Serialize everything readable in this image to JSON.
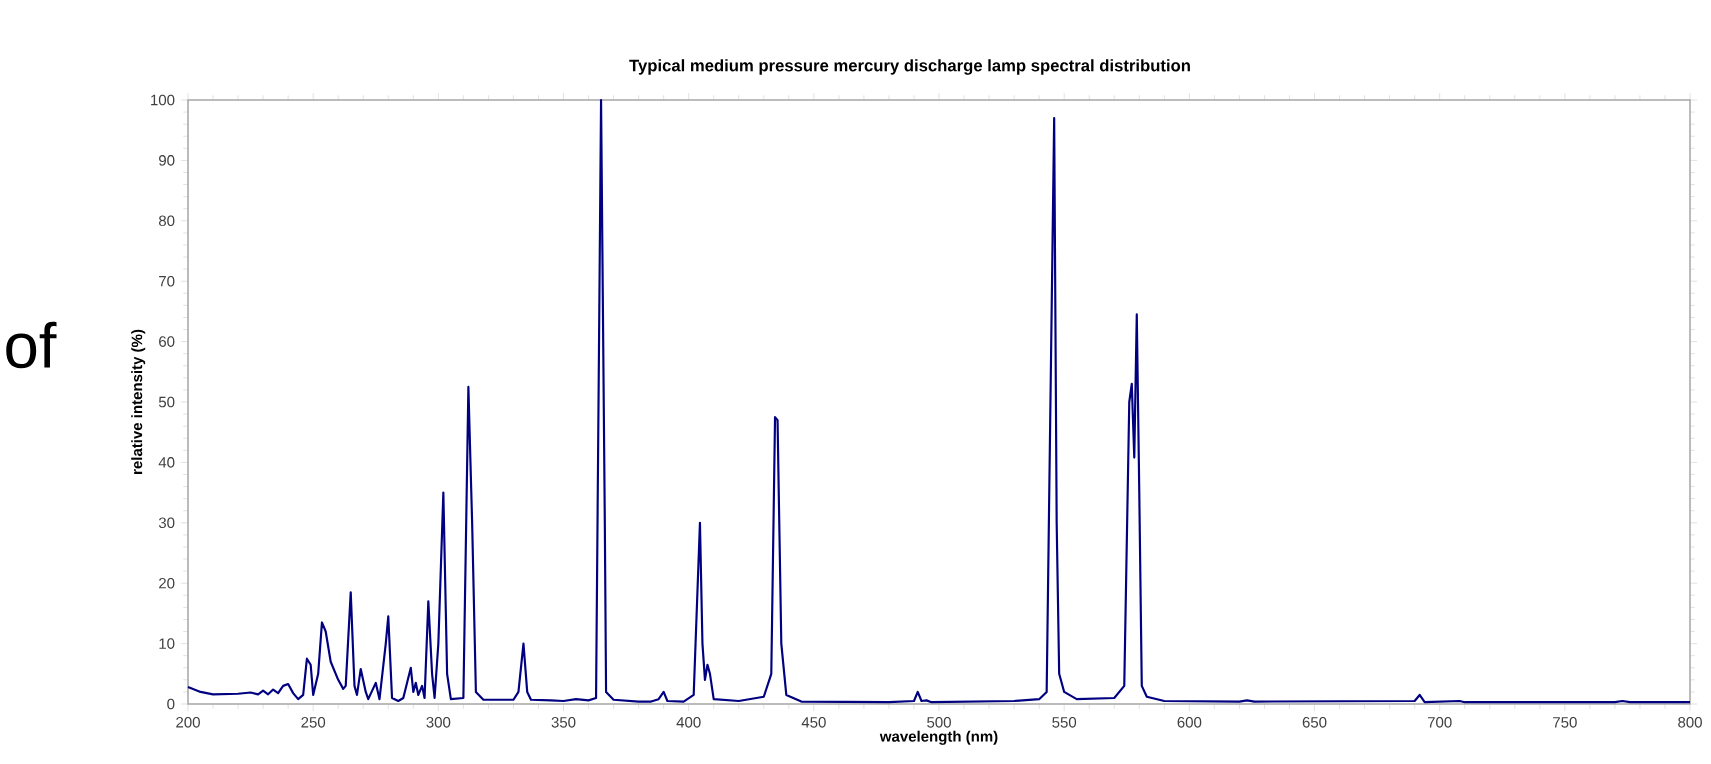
{
  "chart_data": {
    "type": "line",
    "title": "Typical medium pressure mercury discharge lamp spectral distribution",
    "xlabel": "wavelength (nm)",
    "ylabel": "relative intensity (%)",
    "annotations": [
      "of"
    ],
    "xlim": [
      200,
      800
    ],
    "ylim": [
      0,
      100
    ],
    "xticks": [
      200,
      250,
      300,
      350,
      400,
      450,
      500,
      550,
      600,
      650,
      700,
      750,
      800
    ],
    "yticks": [
      0,
      10,
      20,
      30,
      40,
      50,
      60,
      70,
      80,
      90,
      100
    ],
    "grid": false,
    "marker": "none",
    "line_style": "solid",
    "x": [
      200,
      205,
      210,
      220,
      225,
      228,
      230,
      232,
      234,
      236,
      238,
      240,
      242,
      244,
      246,
      247.5,
      249,
      250,
      252,
      253.5,
      255,
      257,
      260,
      262,
      263,
      265,
      266.5,
      267.5,
      269,
      271,
      272,
      275,
      276.5,
      279,
      280,
      281.5,
      284,
      286,
      289,
      290,
      291,
      292,
      293.5,
      294.5,
      296,
      297.5,
      298.5,
      300,
      302,
      303.5,
      305,
      310,
      312,
      313.5,
      315,
      318,
      330,
      332,
      334,
      335.5,
      337,
      345,
      350,
      355,
      360,
      363,
      365,
      366.5,
      367,
      370,
      380,
      385,
      388,
      390,
      391.5,
      398,
      402,
      404.5,
      405.5,
      406.5,
      407.5,
      408.5,
      410,
      420,
      430,
      433,
      434.5,
      435.5,
      437,
      439,
      445,
      480,
      490,
      491.5,
      493,
      495,
      497,
      530,
      540,
      543,
      546,
      547,
      548,
      550,
      555,
      570,
      574,
      576,
      577,
      578,
      579,
      580,
      581,
      583,
      590,
      620,
      623,
      626,
      690,
      692,
      694,
      708,
      710,
      770,
      773,
      776,
      800
    ],
    "series": [
      {
        "color": "#000080",
        "values": [
          2.8,
          2.0,
          1.6,
          1.7,
          1.9,
          1.6,
          2.2,
          1.6,
          2.4,
          1.8,
          3.0,
          3.3,
          1.8,
          0.8,
          1.5,
          7.5,
          6.5,
          1.5,
          5,
          13.5,
          12,
          7,
          4,
          2.5,
          3,
          18.5,
          3,
          1.5,
          5.8,
          2,
          0.8,
          3.5,
          0.8,
          10,
          14.5,
          1,
          0.5,
          1,
          6,
          2,
          3.5,
          1.5,
          3,
          1,
          17,
          5,
          1,
          10,
          35,
          5,
          0.8,
          1,
          52.5,
          30,
          2,
          0.7,
          0.7,
          2,
          10,
          2,
          0.7,
          0.6,
          0.5,
          0.8,
          0.6,
          1,
          100,
          30,
          2,
          0.7,
          0.4,
          0.4,
          0.8,
          2,
          0.5,
          0.4,
          1.5,
          30,
          10,
          4,
          6.5,
          5,
          0.8,
          0.5,
          1.2,
          5,
          47.5,
          47,
          10,
          1.5,
          0.4,
          0.3,
          0.5,
          2,
          0.5,
          0.6,
          0.3,
          0.5,
          0.8,
          2,
          97,
          30,
          5,
          2,
          0.8,
          1,
          3,
          50,
          53,
          40.8,
          64.5,
          35,
          3,
          1.2,
          0.5,
          0.4,
          0.6,
          0.4,
          0.5,
          1.5,
          0.3,
          0.5,
          0.3,
          0.3,
          0.5,
          0.3,
          0.3
        ]
      }
    ]
  }
}
